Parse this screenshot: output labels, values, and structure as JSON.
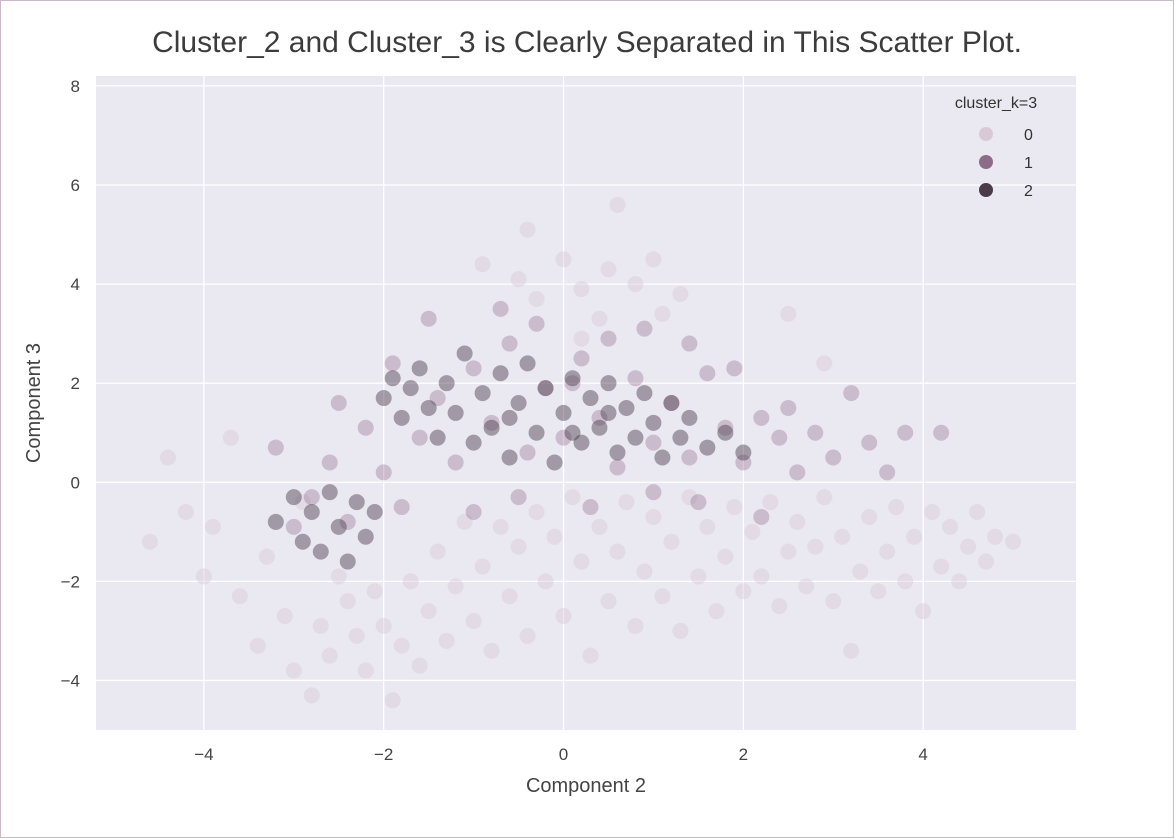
{
  "chart_data": {
    "type": "scatter",
    "title": "Cluster_2 and Cluster_3 is Clearly Separated in This Scatter Plot.",
    "xlabel": "Component 2",
    "ylabel": "Component 3",
    "xlim": [
      -5.2,
      5.7
    ],
    "ylim": [
      -5.0,
      8.2
    ],
    "xticks": [
      -4,
      -2,
      0,
      2,
      4
    ],
    "yticks": [
      -4,
      -2,
      0,
      2,
      4,
      6,
      8
    ],
    "xtick_labels": [
      "−4",
      "−2",
      "0",
      "2",
      "4"
    ],
    "ytick_labels": [
      "−4",
      "−2",
      "0",
      "2",
      "4",
      "6",
      "8"
    ],
    "grid": true,
    "legend": {
      "title": "cluster_k=3",
      "placement": "top-right",
      "entries": [
        {
          "label": "0",
          "color": "#d9c9d6"
        },
        {
          "label": "1",
          "color": "#8e6b89"
        },
        {
          "label": "2",
          "color": "#4a3a4a"
        }
      ]
    },
    "series": [
      {
        "name": "0",
        "color": "#d9c9d6",
        "points": [
          [
            -4.6,
            -1.2
          ],
          [
            -4.4,
            0.5
          ],
          [
            -4.2,
            -0.6
          ],
          [
            -4.0,
            -1.9
          ],
          [
            -3.9,
            -0.9
          ],
          [
            -3.7,
            0.9
          ],
          [
            -3.6,
            -2.3
          ],
          [
            -3.4,
            -3.3
          ],
          [
            -3.3,
            -1.5
          ],
          [
            -3.1,
            -2.7
          ],
          [
            -3.0,
            -3.8
          ],
          [
            -2.9,
            -0.4
          ],
          [
            -2.8,
            -4.3
          ],
          [
            -2.7,
            -2.9
          ],
          [
            -2.6,
            -3.5
          ],
          [
            -2.5,
            -1.9
          ],
          [
            -2.4,
            -2.4
          ],
          [
            -2.3,
            -3.1
          ],
          [
            -2.2,
            -3.8
          ],
          [
            -2.1,
            -2.2
          ],
          [
            -2.0,
            -2.9
          ],
          [
            -1.9,
            -4.4
          ],
          [
            -1.8,
            -3.3
          ],
          [
            -1.7,
            -2.0
          ],
          [
            -1.6,
            -3.7
          ],
          [
            -1.5,
            -2.6
          ],
          [
            -1.4,
            -1.4
          ],
          [
            -1.3,
            -3.2
          ],
          [
            -1.2,
            -2.1
          ],
          [
            -1.1,
            -0.8
          ],
          [
            -1.0,
            -2.8
          ],
          [
            -0.9,
            -1.7
          ],
          [
            -0.8,
            -3.4
          ],
          [
            -0.7,
            -0.9
          ],
          [
            -0.6,
            -2.3
          ],
          [
            -0.5,
            -1.3
          ],
          [
            -0.4,
            -3.1
          ],
          [
            -0.3,
            -0.6
          ],
          [
            -0.2,
            -2.0
          ],
          [
            -0.1,
            -1.1
          ],
          [
            0.0,
            -2.7
          ],
          [
            0.1,
            -0.3
          ],
          [
            0.2,
            -1.6
          ],
          [
            0.3,
            -3.5
          ],
          [
            0.4,
            -0.9
          ],
          [
            0.5,
            -2.4
          ],
          [
            0.6,
            -1.4
          ],
          [
            0.7,
            -0.4
          ],
          [
            0.8,
            -2.9
          ],
          [
            0.9,
            -1.8
          ],
          [
            1.0,
            -0.7
          ],
          [
            1.1,
            -2.3
          ],
          [
            1.2,
            -1.2
          ],
          [
            1.3,
            -3.0
          ],
          [
            1.4,
            -0.3
          ],
          [
            1.5,
            -1.9
          ],
          [
            1.6,
            -0.9
          ],
          [
            1.7,
            -2.6
          ],
          [
            1.8,
            -1.5
          ],
          [
            1.9,
            -0.5
          ],
          [
            2.0,
            -2.2
          ],
          [
            2.1,
            -1.0
          ],
          [
            2.2,
            -1.9
          ],
          [
            2.3,
            -0.4
          ],
          [
            2.4,
            -2.5
          ],
          [
            2.5,
            -1.4
          ],
          [
            2.6,
            -0.8
          ],
          [
            2.7,
            -2.1
          ],
          [
            2.8,
            -1.3
          ],
          [
            2.9,
            -0.3
          ],
          [
            3.0,
            -2.4
          ],
          [
            3.1,
            -1.1
          ],
          [
            3.2,
            -3.4
          ],
          [
            3.3,
            -1.8
          ],
          [
            3.4,
            -0.7
          ],
          [
            3.5,
            -2.2
          ],
          [
            3.6,
            -1.4
          ],
          [
            3.7,
            -0.5
          ],
          [
            3.8,
            -2.0
          ],
          [
            3.9,
            -1.1
          ],
          [
            4.0,
            -2.6
          ],
          [
            4.1,
            -0.6
          ],
          [
            4.2,
            -1.7
          ],
          [
            4.3,
            -0.9
          ],
          [
            4.4,
            -2.0
          ],
          [
            4.5,
            -1.3
          ],
          [
            4.6,
            -0.6
          ],
          [
            4.7,
            -1.6
          ],
          [
            4.8,
            -1.1
          ],
          [
            5.0,
            -1.2
          ],
          [
            -0.5,
            4.1
          ],
          [
            -0.3,
            3.7
          ],
          [
            0.0,
            4.5
          ],
          [
            0.2,
            3.9
          ],
          [
            0.5,
            4.3
          ],
          [
            0.8,
            4.0
          ],
          [
            1.0,
            4.5
          ],
          [
            1.3,
            3.8
          ],
          [
            0.6,
            5.6
          ],
          [
            -0.9,
            4.4
          ],
          [
            0.4,
            3.3
          ],
          [
            1.1,
            3.4
          ],
          [
            -0.4,
            5.1
          ],
          [
            0.2,
            2.9
          ],
          [
            2.5,
            3.4
          ],
          [
            2.9,
            2.4
          ]
        ]
      },
      {
        "name": "1",
        "color": "#8e6b89",
        "points": [
          [
            -2.8,
            -0.3
          ],
          [
            -2.6,
            0.4
          ],
          [
            -2.4,
            -0.8
          ],
          [
            -2.2,
            1.1
          ],
          [
            -2.0,
            0.2
          ],
          [
            -1.8,
            -0.5
          ],
          [
            -1.6,
            0.9
          ],
          [
            -1.4,
            1.7
          ],
          [
            -1.2,
            0.4
          ],
          [
            -1.0,
            2.3
          ],
          [
            -0.8,
            1.2
          ],
          [
            -0.6,
            2.8
          ],
          [
            -0.4,
            0.6
          ],
          [
            -0.2,
            1.9
          ],
          [
            0.0,
            0.9
          ],
          [
            0.2,
            2.5
          ],
          [
            0.4,
            1.3
          ],
          [
            0.6,
            0.3
          ],
          [
            0.8,
            2.1
          ],
          [
            1.0,
            0.8
          ],
          [
            1.2,
            1.6
          ],
          [
            1.4,
            0.5
          ],
          [
            1.6,
            2.2
          ],
          [
            1.8,
            1.1
          ],
          [
            2.0,
            0.4
          ],
          [
            2.2,
            1.3
          ],
          [
            2.4,
            0.9
          ],
          [
            2.6,
            0.2
          ],
          [
            2.8,
            1.0
          ],
          [
            3.0,
            0.5
          ],
          [
            3.2,
            1.8
          ],
          [
            3.4,
            0.8
          ],
          [
            3.6,
            0.2
          ],
          [
            3.8,
            1.0
          ],
          [
            4.2,
            1.0
          ],
          [
            -3.2,
            0.7
          ],
          [
            -3.0,
            -0.9
          ],
          [
            -2.5,
            1.6
          ],
          [
            -1.9,
            2.4
          ],
          [
            -1.5,
            3.3
          ],
          [
            -0.7,
            3.5
          ],
          [
            -0.3,
            3.2
          ],
          [
            0.1,
            2.0
          ],
          [
            0.5,
            2.9
          ],
          [
            0.9,
            3.1
          ],
          [
            1.4,
            2.8
          ],
          [
            1.9,
            2.3
          ],
          [
            2.5,
            1.5
          ],
          [
            1.0,
            -0.2
          ],
          [
            -0.5,
            -0.3
          ],
          [
            0.3,
            -0.5
          ],
          [
            1.5,
            -0.4
          ],
          [
            -1.0,
            -0.6
          ],
          [
            2.2,
            -0.7
          ]
        ]
      },
      {
        "name": "2",
        "color": "#4a3a4a",
        "points": [
          [
            -3.2,
            -0.8
          ],
          [
            -3.0,
            -0.3
          ],
          [
            -2.9,
            -1.2
          ],
          [
            -2.8,
            -0.6
          ],
          [
            -2.7,
            -1.4
          ],
          [
            -2.6,
            -0.2
          ],
          [
            -2.5,
            -0.9
          ],
          [
            -2.4,
            -1.6
          ],
          [
            -2.3,
            -0.4
          ],
          [
            -2.2,
            -1.1
          ],
          [
            -2.1,
            -0.6
          ],
          [
            -2.0,
            1.7
          ],
          [
            -1.9,
            2.1
          ],
          [
            -1.8,
            1.3
          ],
          [
            -1.7,
            1.9
          ],
          [
            -1.6,
            2.3
          ],
          [
            -1.5,
            1.5
          ],
          [
            -1.4,
            0.9
          ],
          [
            -1.3,
            2.0
          ],
          [
            -1.2,
            1.4
          ],
          [
            -1.1,
            2.6
          ],
          [
            -1.0,
            0.8
          ],
          [
            -0.9,
            1.8
          ],
          [
            -0.8,
            1.1
          ],
          [
            -0.7,
            2.2
          ],
          [
            -0.6,
            0.5
          ],
          [
            -0.5,
            1.6
          ],
          [
            -0.4,
            2.4
          ],
          [
            -0.3,
            1.0
          ],
          [
            -0.2,
            1.9
          ],
          [
            -0.1,
            0.4
          ],
          [
            0.0,
            1.4
          ],
          [
            0.1,
            2.1
          ],
          [
            0.2,
            0.8
          ],
          [
            0.3,
            1.7
          ],
          [
            0.4,
            1.1
          ],
          [
            0.5,
            2.0
          ],
          [
            0.6,
            0.6
          ],
          [
            0.7,
            1.5
          ],
          [
            0.8,
            0.9
          ],
          [
            0.9,
            1.8
          ],
          [
            1.0,
            1.2
          ],
          [
            1.1,
            0.5
          ],
          [
            1.2,
            1.6
          ],
          [
            1.3,
            0.9
          ],
          [
            1.4,
            1.3
          ],
          [
            1.6,
            0.7
          ],
          [
            1.8,
            1.0
          ],
          [
            2.0,
            0.6
          ],
          [
            0.1,
            1.0
          ],
          [
            -0.6,
            1.3
          ],
          [
            0.5,
            1.4
          ]
        ]
      }
    ]
  }
}
